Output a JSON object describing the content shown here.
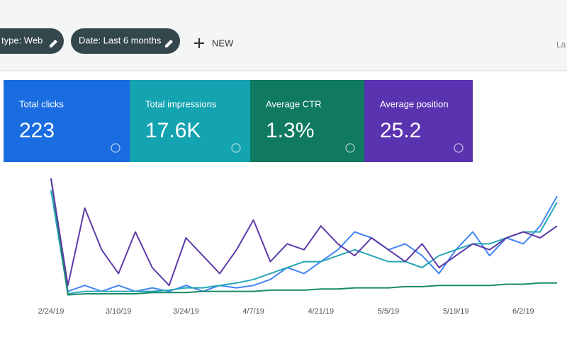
{
  "header": {
    "chips": [
      "type: Web",
      "Date: Last 6 months"
    ],
    "new_button": "NEW",
    "cut_text": "La"
  },
  "cards": [
    {
      "label": "Total clicks",
      "value": "223",
      "color": "#1a6de0"
    },
    {
      "label": "Total impressions",
      "value": "17.6K",
      "color": "#14a3b0"
    },
    {
      "label": "Average CTR",
      "value": "1.3%",
      "color": "#0f7a5f"
    },
    {
      "label": "Average position",
      "value": "25.2",
      "color": "#5a34b0"
    }
  ],
  "chart_data": {
    "type": "line",
    "categories": [
      "2/24/19",
      null,
      null,
      null,
      "3/10/19",
      null,
      null,
      null,
      "3/24/19",
      null,
      null,
      null,
      "4/7/19",
      null,
      null,
      null,
      "4/21/19",
      null,
      null,
      null,
      "5/5/19",
      null,
      null,
      null,
      "5/19/19",
      null,
      null,
      null,
      "6/2/19",
      null,
      null
    ],
    "ylim": [
      0,
      100
    ],
    "series": [
      {
        "name": "Total clicks",
        "color": "#4285f4",
        "values": [
          100,
          5,
          10,
          5,
          10,
          5,
          8,
          5,
          10,
          5,
          10,
          8,
          10,
          15,
          25,
          20,
          30,
          40,
          55,
          50,
          40,
          45,
          35,
          20,
          40,
          55,
          35,
          50,
          45,
          60,
          85
        ]
      },
      {
        "name": "Total impressions",
        "color": "#26a6b5",
        "values": [
          90,
          3,
          5,
          5,
          5,
          5,
          5,
          6,
          8,
          8,
          10,
          12,
          15,
          20,
          25,
          30,
          30,
          35,
          40,
          35,
          30,
          30,
          25,
          35,
          40,
          45,
          45,
          50,
          55,
          55,
          80
        ]
      },
      {
        "name": "Average CTR",
        "color": "#1a8a6a",
        "values": [
          100,
          2,
          3,
          3,
          3,
          3,
          4,
          4,
          4,
          5,
          5,
          5,
          5,
          6,
          6,
          6,
          7,
          7,
          8,
          8,
          8,
          9,
          9,
          10,
          10,
          10,
          10,
          11,
          11,
          12,
          12
        ]
      },
      {
        "name": "Average position",
        "color": "#5e3aa8",
        "values": [
          100,
          10,
          75,
          40,
          20,
          55,
          25,
          10,
          50,
          35,
          20,
          40,
          65,
          30,
          45,
          40,
          60,
          45,
          35,
          50,
          40,
          30,
          45,
          25,
          35,
          45,
          40,
          50,
          55,
          50,
          60
        ]
      }
    ]
  }
}
